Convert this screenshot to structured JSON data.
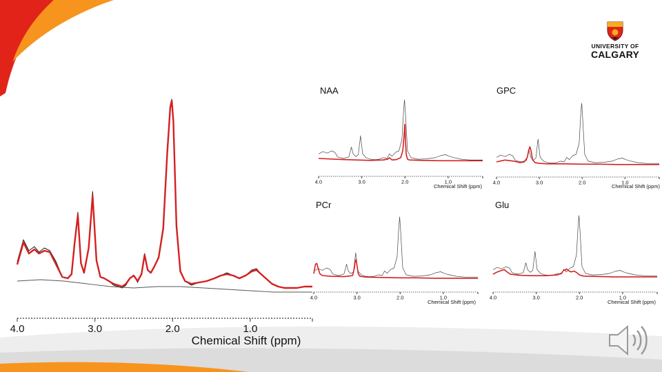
{
  "logo": {
    "line1": "UNIVERSITY OF",
    "line2": "CALGARY"
  },
  "colors": {
    "accent_red": "#e2231a",
    "accent_orange": "#f7941d",
    "fit": "#d42020",
    "data": "#1a1a1a",
    "baseline": "#555555"
  },
  "icons": {
    "speaker": "speaker-icon",
    "crest": "crest-icon"
  },
  "chart_data": [
    {
      "type": "line",
      "panel": "main",
      "xlabel": "Chemical Shift (ppm)",
      "ylabel": "",
      "xlim": [
        4.0,
        0.2
      ],
      "x_reversed": true,
      "xticks": [
        4.0,
        3.0,
        2.0,
        1.0
      ],
      "xtick_labels": [
        "4.0",
        "3.0",
        "2.0",
        "1.0"
      ],
      "series": [
        {
          "role": "data",
          "x": [
            4.0,
            3.92,
            3.85,
            3.78,
            3.72,
            3.65,
            3.58,
            3.5,
            3.42,
            3.35,
            3.3,
            3.26,
            3.22,
            3.18,
            3.14,
            3.08,
            3.03,
            2.98,
            2.93,
            2.88,
            2.82,
            2.76,
            2.7,
            2.65,
            2.6,
            2.55,
            2.5,
            2.45,
            2.4,
            2.36,
            2.32,
            2.28,
            2.24,
            2.18,
            2.12,
            2.07,
            2.03,
            2.01,
            1.99,
            1.95,
            1.9,
            1.84,
            1.76,
            1.66,
            1.56,
            1.46,
            1.38,
            1.3,
            1.22,
            1.14,
            1.06,
            0.98,
            0.92,
            0.86,
            0.8,
            0.72,
            0.64,
            0.56,
            0.48,
            0.4,
            0.3,
            0.2
          ],
          "y": [
            0.14,
            0.3,
            0.22,
            0.25,
            0.21,
            0.24,
            0.22,
            0.14,
            0.03,
            0.02,
            0.05,
            0.29,
            0.5,
            0.14,
            0.06,
            0.25,
            0.65,
            0.16,
            0.03,
            0.02,
            0.0,
            -0.03,
            -0.04,
            -0.05,
            -0.03,
            0.02,
            0.04,
            -0.01,
            0.05,
            0.2,
            0.08,
            0.06,
            0.1,
            0.18,
            0.4,
            0.96,
            1.28,
            1.32,
            1.18,
            0.42,
            0.08,
            0.0,
            -0.03,
            -0.01,
            0.0,
            0.02,
            0.04,
            0.06,
            0.04,
            0.02,
            0.04,
            0.08,
            0.09,
            0.05,
            0.02,
            -0.02,
            -0.04,
            -0.05,
            -0.05,
            -0.05,
            -0.04,
            -0.04
          ]
        },
        {
          "role": "fit",
          "x": [
            4.0,
            3.92,
            3.85,
            3.78,
            3.72,
            3.65,
            3.58,
            3.5,
            3.42,
            3.35,
            3.3,
            3.26,
            3.22,
            3.18,
            3.14,
            3.08,
            3.03,
            2.98,
            2.93,
            2.88,
            2.82,
            2.76,
            2.7,
            2.65,
            2.6,
            2.55,
            2.5,
            2.45,
            2.4,
            2.36,
            2.32,
            2.28,
            2.24,
            2.18,
            2.12,
            2.07,
            2.03,
            2.01,
            1.99,
            1.95,
            1.9,
            1.84,
            1.76,
            1.66,
            1.56,
            1.46,
            1.38,
            1.3,
            1.22,
            1.14,
            1.06,
            0.98,
            0.92,
            0.86,
            0.8,
            0.72,
            0.64,
            0.56,
            0.48,
            0.4,
            0.3,
            0.2
          ],
          "y": [
            0.12,
            0.28,
            0.2,
            0.23,
            0.2,
            0.22,
            0.21,
            0.12,
            0.03,
            0.02,
            0.05,
            0.28,
            0.48,
            0.13,
            0.06,
            0.24,
            0.62,
            0.15,
            0.03,
            0.02,
            0.0,
            -0.02,
            -0.03,
            -0.04,
            -0.02,
            0.02,
            0.04,
            0.0,
            0.05,
            0.19,
            0.08,
            0.06,
            0.1,
            0.17,
            0.38,
            0.92,
            1.26,
            1.31,
            1.16,
            0.4,
            0.07,
            0.0,
            -0.02,
            -0.01,
            0.0,
            0.02,
            0.04,
            0.05,
            0.04,
            0.02,
            0.04,
            0.07,
            0.08,
            0.05,
            0.02,
            -0.02,
            -0.04,
            -0.05,
            -0.05,
            -0.05,
            -0.04,
            -0.04
          ]
        },
        {
          "role": "baseline",
          "x": [
            4.0,
            3.7,
            3.4,
            3.1,
            2.8,
            2.5,
            2.2,
            1.9,
            1.6,
            1.3,
            1.0,
            0.7,
            0.4,
            0.2
          ],
          "y": [
            0.0,
            0.01,
            0.0,
            -0.02,
            -0.04,
            -0.05,
            -0.04,
            -0.04,
            -0.05,
            -0.06,
            -0.07,
            -0.08,
            -0.08,
            -0.08
          ]
        }
      ]
    },
    {
      "type": "line",
      "panel": "NAA",
      "title": "NAA",
      "xlabel": "Chemical Shift (ppm)",
      "xlim": [
        4.0,
        0.2
      ],
      "x_reversed": true,
      "xticks": [
        4.0,
        3.0,
        2.0,
        1.0
      ],
      "xtick_labels": [
        "4.0",
        "3.0",
        "2.0",
        "1.0"
      ],
      "series": [
        {
          "role": "spectrum",
          "x": [
            4.0,
            3.9,
            3.8,
            3.7,
            3.62,
            3.56,
            3.5,
            3.42,
            3.3,
            3.24,
            3.2,
            3.14,
            3.08,
            3.03,
            2.98,
            2.9,
            2.8,
            2.7,
            2.6,
            2.5,
            2.42,
            2.36,
            2.3,
            2.22,
            2.14,
            2.07,
            2.03,
            2.01,
            1.99,
            1.94,
            1.86,
            1.7,
            1.5,
            1.3,
            1.16,
            1.06,
            0.98,
            0.9,
            0.7,
            0.5,
            0.3,
            0.2
          ],
          "y": [
            0.12,
            0.18,
            0.14,
            0.2,
            0.16,
            0.04,
            0.02,
            0.0,
            0.04,
            0.3,
            0.12,
            0.05,
            0.1,
            0.6,
            0.12,
            0.02,
            -0.02,
            -0.03,
            -0.02,
            0.02,
            0.0,
            0.12,
            0.06,
            0.16,
            0.2,
            0.5,
            1.3,
            1.55,
            1.2,
            0.2,
            0.02,
            -0.02,
            -0.01,
            0.02,
            0.08,
            0.1,
            0.06,
            0.03,
            -0.02,
            -0.04,
            -0.04,
            -0.04
          ]
        },
        {
          "role": "component",
          "x": [
            4.0,
            3.4,
            2.8,
            2.5,
            2.4,
            2.36,
            2.3,
            2.2,
            2.1,
            2.05,
            2.02,
            2.005,
            2.0,
            1.99,
            1.97,
            1.94,
            1.9,
            1.6,
            1.2,
            0.8,
            0.4,
            0.2
          ],
          "y": [
            0.0,
            -0.03,
            -0.05,
            -0.04,
            -0.02,
            0.02,
            -0.04,
            -0.03,
            0.02,
            0.2,
            0.6,
            0.9,
            0.88,
            0.5,
            0.1,
            -0.02,
            -0.04,
            -0.05,
            -0.06,
            -0.06,
            -0.06,
            -0.06
          ]
        }
      ]
    },
    {
      "type": "line",
      "panel": "GPC",
      "title": "GPC",
      "xlabel": "Chemical Shift (ppm)",
      "xlim": [
        4.0,
        0.2
      ],
      "x_reversed": true,
      "xticks": [
        4.0,
        3.0,
        2.0,
        1.0
      ],
      "xtick_labels": [
        "4.0",
        "3.0",
        "2.0",
        "1.0"
      ],
      "series": [
        {
          "role": "spectrum",
          "x": [
            4.0,
            3.9,
            3.8,
            3.7,
            3.62,
            3.56,
            3.5,
            3.42,
            3.3,
            3.24,
            3.2,
            3.14,
            3.08,
            3.03,
            2.98,
            2.9,
            2.8,
            2.7,
            2.6,
            2.5,
            2.42,
            2.36,
            2.3,
            2.22,
            2.14,
            2.07,
            2.03,
            2.01,
            1.99,
            1.94,
            1.86,
            1.7,
            1.5,
            1.3,
            1.16,
            1.06,
            0.98,
            0.9,
            0.7,
            0.5,
            0.3,
            0.2
          ],
          "y": [
            0.12,
            0.18,
            0.14,
            0.2,
            0.16,
            0.04,
            0.02,
            0.0,
            0.04,
            0.3,
            0.12,
            0.05,
            0.1,
            0.6,
            0.12,
            0.02,
            -0.02,
            -0.03,
            -0.02,
            0.02,
            0.0,
            0.12,
            0.06,
            0.16,
            0.2,
            0.5,
            1.3,
            1.55,
            1.2,
            0.2,
            0.02,
            -0.02,
            -0.01,
            0.02,
            0.08,
            0.1,
            0.06,
            0.03,
            -0.02,
            -0.04,
            -0.04,
            -0.04
          ]
        },
        {
          "role": "component",
          "x": [
            4.0,
            3.8,
            3.6,
            3.45,
            3.35,
            3.28,
            3.25,
            3.22,
            3.19,
            3.16,
            3.1,
            3.0,
            2.8,
            2.4,
            2.0,
            1.6,
            1.2,
            0.8,
            0.4,
            0.2
          ],
          "y": [
            0.0,
            0.05,
            0.02,
            -0.02,
            0.0,
            0.12,
            0.3,
            0.4,
            0.28,
            0.06,
            -0.02,
            -0.04,
            -0.05,
            -0.05,
            -0.06,
            -0.06,
            -0.07,
            -0.07,
            -0.07,
            -0.07
          ]
        }
      ]
    },
    {
      "type": "line",
      "panel": "PCr",
      "title": "PCr",
      "xlabel": "Chemical Shift (ppm)",
      "xlim": [
        4.0,
        0.2
      ],
      "x_reversed": true,
      "xticks": [
        4.0,
        3.0,
        2.0,
        1.0
      ],
      "xtick_labels": [
        "4.0",
        "3.0",
        "2.0",
        "1.0"
      ],
      "series": [
        {
          "role": "spectrum",
          "x": [
            4.0,
            3.9,
            3.8,
            3.7,
            3.62,
            3.56,
            3.5,
            3.42,
            3.3,
            3.24,
            3.2,
            3.14,
            3.08,
            3.03,
            2.98,
            2.9,
            2.8,
            2.7,
            2.6,
            2.5,
            2.42,
            2.36,
            2.3,
            2.22,
            2.14,
            2.07,
            2.03,
            2.01,
            1.99,
            1.94,
            1.86,
            1.7,
            1.5,
            1.3,
            1.16,
            1.06,
            0.98,
            0.9,
            0.7,
            0.5,
            0.3,
            0.2
          ],
          "y": [
            0.12,
            0.18,
            0.14,
            0.2,
            0.16,
            0.04,
            0.02,
            0.0,
            0.04,
            0.3,
            0.12,
            0.05,
            0.1,
            0.6,
            0.12,
            0.02,
            -0.02,
            -0.03,
            -0.02,
            0.02,
            0.0,
            0.12,
            0.06,
            0.16,
            0.2,
            0.5,
            1.3,
            1.55,
            1.2,
            0.2,
            0.02,
            -0.02,
            -0.01,
            0.02,
            0.08,
            0.1,
            0.06,
            0.03,
            -0.02,
            -0.04,
            -0.04,
            -0.04
          ]
        },
        {
          "role": "component",
          "x": [
            4.0,
            3.96,
            3.93,
            3.9,
            3.86,
            3.8,
            3.6,
            3.3,
            3.1,
            3.06,
            3.04,
            3.02,
            3.0,
            2.97,
            2.93,
            2.8,
            2.4,
            2.0,
            1.6,
            1.2,
            0.8,
            0.4,
            0.2
          ],
          "y": [
            0.05,
            0.3,
            0.32,
            0.2,
            0.05,
            0.0,
            -0.02,
            -0.03,
            0.0,
            0.2,
            0.38,
            0.42,
            0.28,
            0.05,
            -0.02,
            -0.04,
            -0.05,
            -0.06,
            -0.06,
            -0.07,
            -0.07,
            -0.07,
            -0.07
          ]
        }
      ]
    },
    {
      "type": "line",
      "panel": "Glu",
      "title": "Glu",
      "xlabel": "Chemical Shift (ppm)",
      "xlim": [
        4.0,
        0.2
      ],
      "x_reversed": true,
      "xticks": [
        4.0,
        3.0,
        2.0,
        1.0
      ],
      "xtick_labels": [
        "4.0",
        "3.0",
        "2.0",
        "1.0"
      ],
      "series": [
        {
          "role": "spectrum",
          "x": [
            4.0,
            3.9,
            3.8,
            3.7,
            3.62,
            3.56,
            3.5,
            3.42,
            3.3,
            3.24,
            3.2,
            3.14,
            3.08,
            3.03,
            2.98,
            2.9,
            2.8,
            2.7,
            2.6,
            2.5,
            2.42,
            2.36,
            2.3,
            2.22,
            2.14,
            2.07,
            2.03,
            2.01,
            1.99,
            1.94,
            1.86,
            1.7,
            1.5,
            1.3,
            1.16,
            1.06,
            0.98,
            0.9,
            0.7,
            0.5,
            0.3,
            0.2
          ],
          "y": [
            0.12,
            0.18,
            0.14,
            0.2,
            0.16,
            0.04,
            0.02,
            0.0,
            0.04,
            0.3,
            0.12,
            0.05,
            0.1,
            0.6,
            0.12,
            0.02,
            -0.02,
            -0.03,
            -0.02,
            0.02,
            0.0,
            0.12,
            0.06,
            0.16,
            0.2,
            0.5,
            1.3,
            1.55,
            1.2,
            0.2,
            0.02,
            -0.02,
            -0.01,
            0.02,
            0.08,
            0.1,
            0.06,
            0.03,
            -0.02,
            -0.04,
            -0.04,
            -0.04
          ]
        },
        {
          "role": "component",
          "x": [
            4.0,
            3.9,
            3.8,
            3.74,
            3.7,
            3.6,
            3.4,
            3.1,
            2.8,
            2.5,
            2.4,
            2.36,
            2.33,
            2.3,
            2.26,
            2.2,
            2.12,
            2.06,
            2.0,
            1.9,
            1.6,
            1.2,
            0.8,
            0.4,
            0.2
          ],
          "y": [
            0.0,
            0.06,
            0.1,
            0.12,
            0.08,
            0.0,
            -0.03,
            -0.04,
            -0.04,
            -0.02,
            0.04,
            0.12,
            0.1,
            0.14,
            0.1,
            0.06,
            0.08,
            0.04,
            -0.02,
            -0.05,
            -0.06,
            -0.07,
            -0.07,
            -0.07,
            -0.07
          ]
        }
      ]
    }
  ]
}
